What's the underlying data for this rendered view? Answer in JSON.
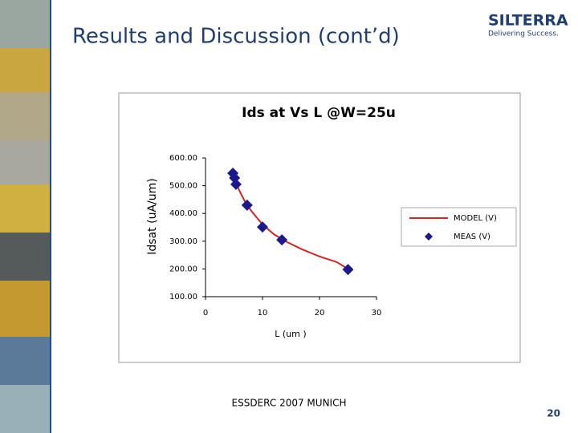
{
  "slide_title": "Results and Discussion (cont’d)",
  "logo": {
    "name": "SILTERRA",
    "tagline": "Delivering Success."
  },
  "footer": "ESSDERC 2007 MUNICH",
  "page_number": "20",
  "chart_data": {
    "type": "line",
    "title": "Ids at Vs L @W=25u",
    "x_label": "L (um )",
    "y_label": "Idsat (uA/um)",
    "xlim": [
      0,
      30
    ],
    "xticks": [
      0,
      10,
      20,
      30
    ],
    "ylim": [
      100,
      600
    ],
    "yticks": [
      {
        "value": 100,
        "label": "100.00"
      },
      {
        "value": 200,
        "label": "200.00"
      },
      {
        "value": 300,
        "label": "300.00"
      },
      {
        "value": 400,
        "label": "400.00"
      },
      {
        "value": 500,
        "label": "500.00"
      },
      {
        "value": 600,
        "label": "600.00"
      }
    ],
    "legend": "right",
    "series": [
      {
        "name": "MODEL (V)",
        "color": "#dd2222",
        "style": "line",
        "x": [
          4.5,
          5,
          6,
          7,
          8,
          10,
          12,
          14,
          17,
          20,
          23,
          25
        ],
        "values": [
          550,
          525,
          480,
          440,
          410,
          360,
          325,
          300,
          270,
          245,
          225,
          200
        ]
      },
      {
        "name": "MEAS (V)",
        "color": "#1a1a8c",
        "style": "markers",
        "x": [
          4.8,
          5.1,
          5.35,
          7.3,
          10,
          13.4,
          25
        ],
        "values": [
          545,
          528,
          505,
          430,
          351,
          305,
          198
        ]
      }
    ]
  }
}
